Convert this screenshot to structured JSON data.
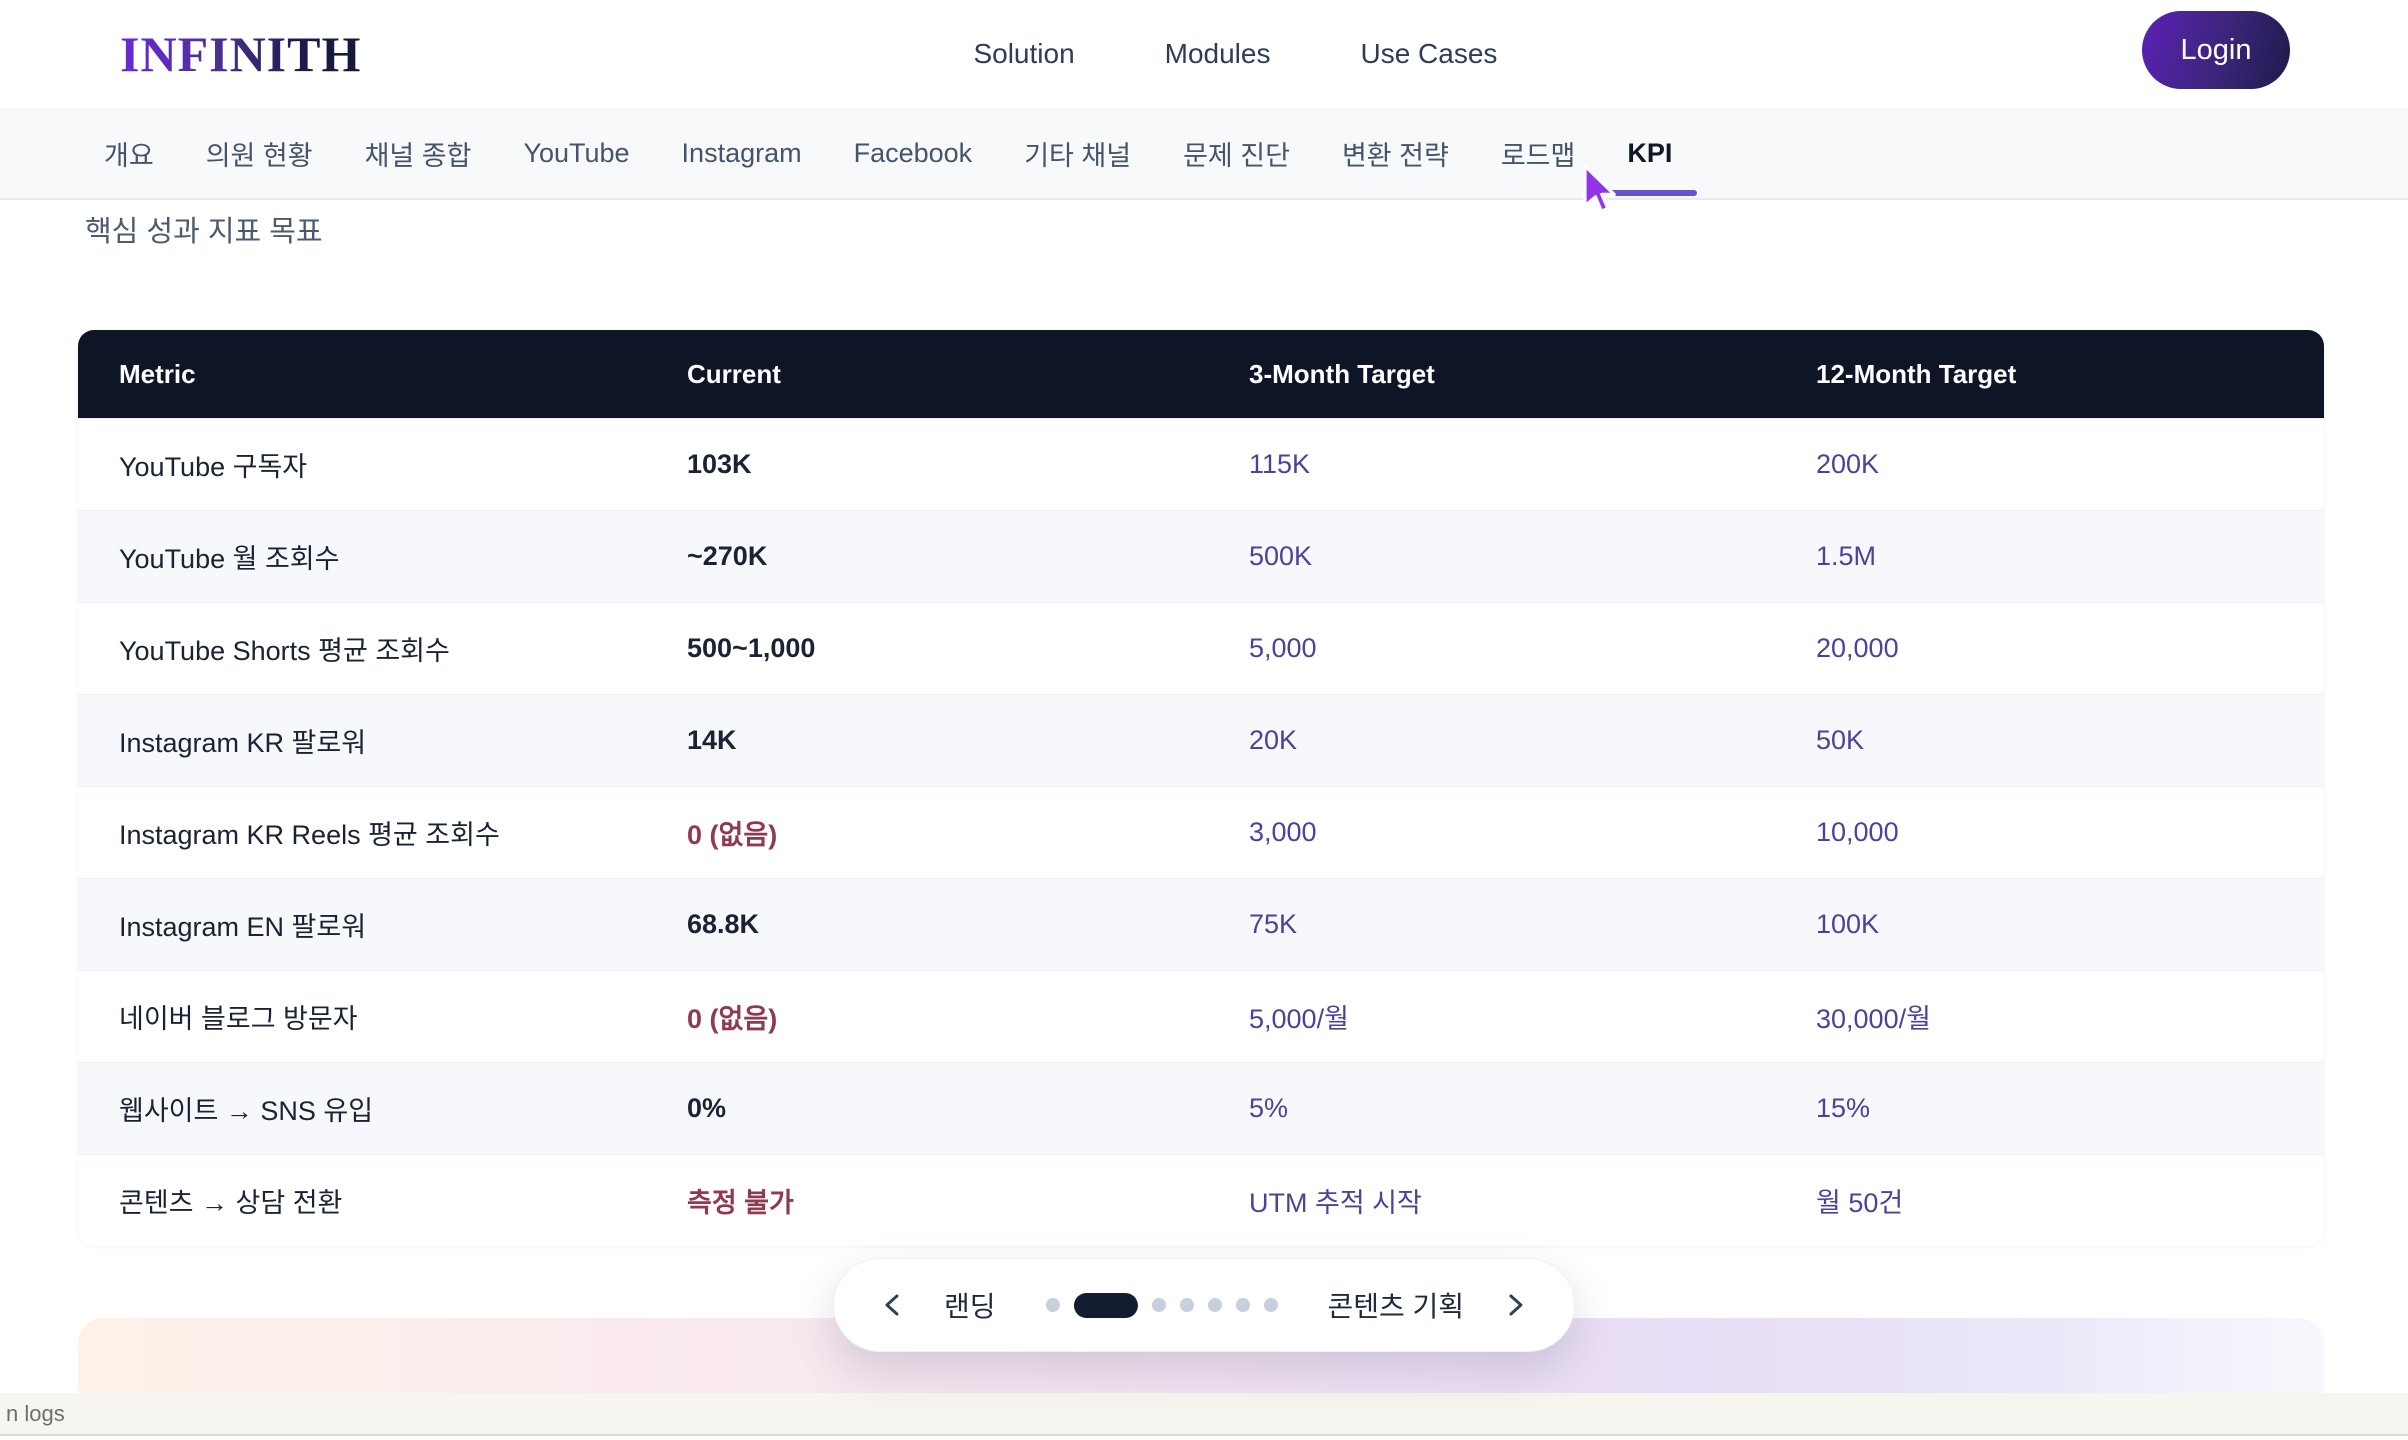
{
  "header": {
    "logo": "INFINITH",
    "nav": [
      {
        "label": "Solution"
      },
      {
        "label": "Modules"
      },
      {
        "label": "Use Cases"
      }
    ],
    "login_label": "Login"
  },
  "tabs": {
    "items": [
      {
        "label": "개요",
        "active": false
      },
      {
        "label": "의원 현황",
        "active": false
      },
      {
        "label": "채널 종합",
        "active": false
      },
      {
        "label": "YouTube",
        "active": false
      },
      {
        "label": "Instagram",
        "active": false
      },
      {
        "label": "Facebook",
        "active": false
      },
      {
        "label": "기타 채널",
        "active": false
      },
      {
        "label": "문제 진단",
        "active": false
      },
      {
        "label": "변환 전략",
        "active": false
      },
      {
        "label": "로드맵",
        "active": false
      },
      {
        "label": "KPI",
        "active": true
      }
    ]
  },
  "section": {
    "title": "핵심 성과 지표 목표"
  },
  "kpi_table": {
    "columns": [
      "Metric",
      "Current",
      "3-Month Target",
      "12-Month Target"
    ],
    "rows": [
      {
        "metric": "YouTube 구독자",
        "current": "103K",
        "negative": false,
        "target_3m": "115K",
        "target_12m": "200K"
      },
      {
        "metric": "YouTube 월 조회수",
        "current": "~270K",
        "negative": false,
        "target_3m": "500K",
        "target_12m": "1.5M"
      },
      {
        "metric": "YouTube Shorts 평균 조회수",
        "current": "500~1,000",
        "negative": false,
        "target_3m": "5,000",
        "target_12m": "20,000"
      },
      {
        "metric": "Instagram KR 팔로워",
        "current": "14K",
        "negative": false,
        "target_3m": "20K",
        "target_12m": "50K"
      },
      {
        "metric": "Instagram KR Reels 평균 조회수",
        "current": "0 (없음)",
        "negative": true,
        "target_3m": "3,000",
        "target_12m": "10,000"
      },
      {
        "metric": "Instagram EN 팔로워",
        "current": "68.8K",
        "negative": false,
        "target_3m": "75K",
        "target_12m": "100K"
      },
      {
        "metric": "네이버 블로그 방문자",
        "current": "0 (없음)",
        "negative": true,
        "target_3m": "5,000/월",
        "target_12m": "30,000/월"
      },
      {
        "metric": "웹사이트 → SNS 유입",
        "current": "0%",
        "negative": false,
        "target_3m": "5%",
        "target_12m": "15%"
      },
      {
        "metric": "콘텐츠 → 상담 전환",
        "current": "측정 불가",
        "negative": true,
        "target_3m": "UTM 추적 시작",
        "target_12m": "월 50건"
      }
    ]
  },
  "carousel": {
    "prev_label": "랜딩",
    "next_label": "콘텐츠 기획",
    "dots_total": 7,
    "active_dot_index": 1
  },
  "statusbar": {
    "text": "n logs"
  },
  "colors": {
    "accent_purple": "#6553cb",
    "target_text": "#4f4196",
    "negative_text": "#8f3a4e",
    "table_header_bg": "#0d1526",
    "row_alt_bg": "#f6f8fb",
    "tabbar_bg": "#f8f9fb",
    "gradient_panel": [
      "#fdf2e8",
      "#f9e9ef",
      "#e7ddf6",
      "#f7f8fd"
    ],
    "statusbar_bg": "#f7f5f0",
    "login_gradient": [
      "#5b21b6",
      "#1e1b4b"
    ]
  }
}
